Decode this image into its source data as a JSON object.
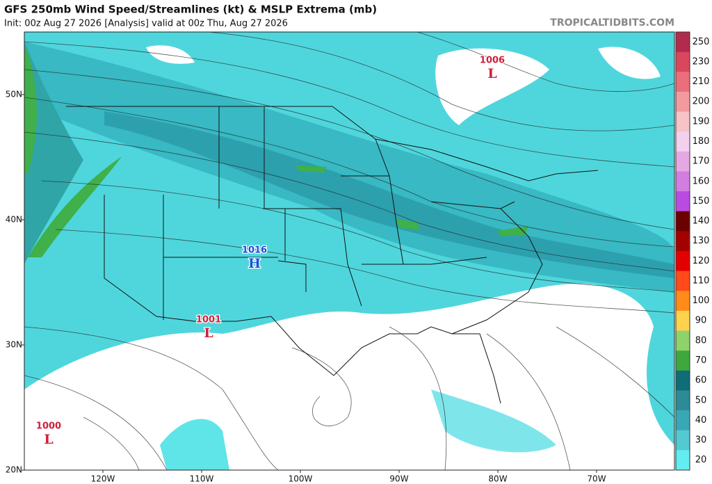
{
  "header": {
    "title": "GFS 250mb Wind Speed/Streamlines (kt) & MSLP Extrema (mb)",
    "subtitle": "Init: 00z Aug 27 2026   [Analysis]   valid at 00z Thu, Aug 27 2026",
    "credit": "TROPICALTIDBITS.COM"
  },
  "map": {
    "lat_labels": [
      "50N",
      "40N",
      "30N",
      "20N"
    ],
    "lon_labels": [
      "120W",
      "110W",
      "100W",
      "90W",
      "80W",
      "70W"
    ],
    "extrema": [
      {
        "value": "1006",
        "letter": "L",
        "color": "#d0203a"
      },
      {
        "value": "1016",
        "letter": "H",
        "color": "#1a4fd8"
      },
      {
        "value": "1001",
        "letter": "L",
        "color": "#d0203a"
      },
      {
        "value": "1000",
        "letter": "L",
        "color": "#d0203a"
      }
    ]
  },
  "colorbar": {
    "levels": [
      {
        "label": "250",
        "color": "#b22b4e"
      },
      {
        "label": "230",
        "color": "#d9475c"
      },
      {
        "label": "210",
        "color": "#ea6f7a"
      },
      {
        "label": "200",
        "color": "#f29aa0"
      },
      {
        "label": "190",
        "color": "#f7c3c7"
      },
      {
        "label": "180",
        "color": "#f3d0ee"
      },
      {
        "label": "170",
        "color": "#e5a8e3"
      },
      {
        "label": "160",
        "color": "#d27ee0"
      },
      {
        "label": "150",
        "color": "#b94be0"
      },
      {
        "label": "140",
        "color": "#6b0000"
      },
      {
        "label": "130",
        "color": "#a30000"
      },
      {
        "label": "120",
        "color": "#e30000"
      },
      {
        "label": "110",
        "color": "#ff4a1a"
      },
      {
        "label": "100",
        "color": "#ff8c1a"
      },
      {
        "label": "90",
        "color": "#ffd24d"
      },
      {
        "label": "80",
        "color": "#8fd16a"
      },
      {
        "label": "70",
        "color": "#3ea83e"
      },
      {
        "label": "60",
        "color": "#0f6d78"
      },
      {
        "label": "50",
        "color": "#2c8b97"
      },
      {
        "label": "40",
        "color": "#3aa7b5"
      },
      {
        "label": "30",
        "color": "#53c9d1"
      },
      {
        "label": "20",
        "color": "#62eef0"
      }
    ]
  }
}
